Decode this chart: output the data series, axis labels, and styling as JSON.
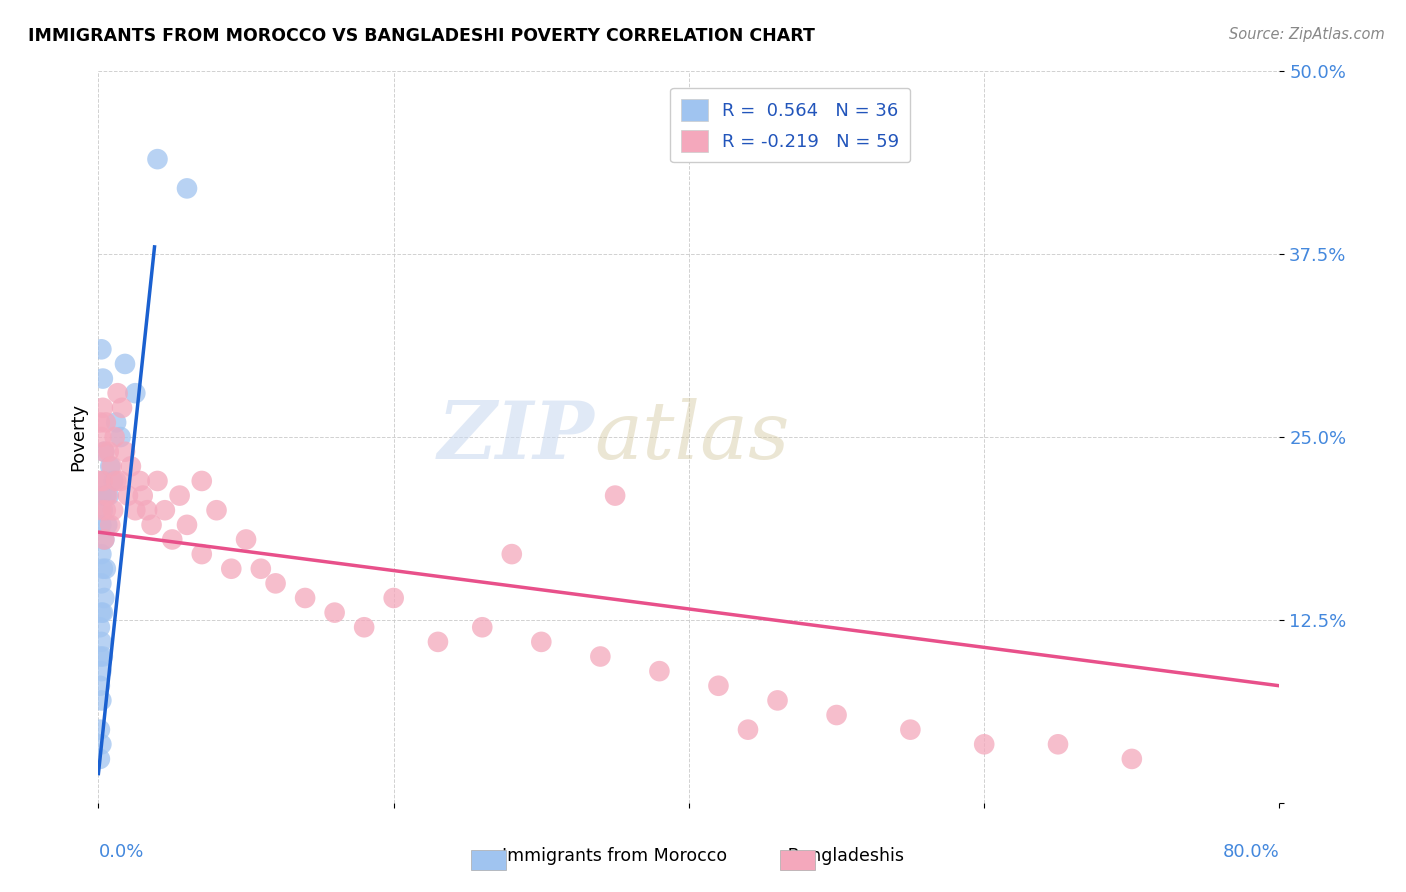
{
  "title": "IMMIGRANTS FROM MOROCCO VS BANGLADESHI POVERTY CORRELATION CHART",
  "source": "Source: ZipAtlas.com",
  "ylabel": "Poverty",
  "xlim": [
    0.0,
    0.8
  ],
  "ylim": [
    0.0,
    0.5
  ],
  "yticks": [
    0.0,
    0.125,
    0.25,
    0.375,
    0.5
  ],
  "ytick_labels": [
    "",
    "12.5%",
    "25.0%",
    "37.5%",
    "50.0%"
  ],
  "legend_r1": "R =  0.564   N = 36",
  "legend_r2": "R = -0.219   N = 59",
  "color_morocco": "#a0c4f0",
  "color_bangladesh": "#f4a8bc",
  "color_line_morocco": "#1a60d0",
  "color_line_bangladesh": "#e8508a",
  "color_trendline_dashed": "#90b8e0",
  "watermark_zip": "ZIP",
  "watermark_atlas": "atlas",
  "morocco_x": [
    0.001,
    0.001,
    0.001,
    0.001,
    0.001,
    0.002,
    0.002,
    0.002,
    0.002,
    0.002,
    0.002,
    0.002,
    0.002,
    0.002,
    0.002,
    0.003,
    0.003,
    0.003,
    0.003,
    0.003,
    0.003,
    0.004,
    0.004,
    0.004,
    0.005,
    0.005,
    0.006,
    0.007,
    0.008,
    0.01,
    0.012,
    0.015,
    0.018,
    0.025,
    0.04,
    0.06
  ],
  "morocco_y": [
    0.03,
    0.05,
    0.08,
    0.1,
    0.12,
    0.04,
    0.07,
    0.09,
    0.11,
    0.13,
    0.15,
    0.17,
    0.19,
    0.21,
    0.31,
    0.1,
    0.13,
    0.16,
    0.2,
    0.22,
    0.29,
    0.14,
    0.18,
    0.24,
    0.16,
    0.21,
    0.19,
    0.21,
    0.23,
    0.22,
    0.26,
    0.25,
    0.3,
    0.28,
    0.44,
    0.42
  ],
  "bangladesh_x": [
    0.001,
    0.001,
    0.002,
    0.002,
    0.003,
    0.003,
    0.004,
    0.004,
    0.005,
    0.005,
    0.006,
    0.007,
    0.008,
    0.009,
    0.01,
    0.011,
    0.012,
    0.013,
    0.015,
    0.016,
    0.018,
    0.02,
    0.022,
    0.025,
    0.028,
    0.03,
    0.033,
    0.036,
    0.04,
    0.045,
    0.05,
    0.055,
    0.06,
    0.07,
    0.08,
    0.09,
    0.1,
    0.11,
    0.12,
    0.14,
    0.16,
    0.18,
    0.2,
    0.23,
    0.26,
    0.3,
    0.34,
    0.38,
    0.42,
    0.46,
    0.5,
    0.55,
    0.6,
    0.65,
    0.7,
    0.35,
    0.28,
    0.07,
    0.44
  ],
  "bangladesh_y": [
    0.22,
    0.26,
    0.2,
    0.25,
    0.22,
    0.27,
    0.18,
    0.24,
    0.2,
    0.26,
    0.21,
    0.24,
    0.19,
    0.23,
    0.2,
    0.25,
    0.22,
    0.28,
    0.22,
    0.27,
    0.24,
    0.21,
    0.23,
    0.2,
    0.22,
    0.21,
    0.2,
    0.19,
    0.22,
    0.2,
    0.18,
    0.21,
    0.19,
    0.17,
    0.2,
    0.16,
    0.18,
    0.16,
    0.15,
    0.14,
    0.13,
    0.12,
    0.14,
    0.11,
    0.12,
    0.11,
    0.1,
    0.09,
    0.08,
    0.07,
    0.06,
    0.05,
    0.04,
    0.04,
    0.03,
    0.21,
    0.17,
    0.22,
    0.05
  ],
  "morocco_trend": [
    0.0,
    0.06,
    0.0,
    0.5
  ],
  "bangladesh_trend_x": [
    0.0,
    0.8
  ],
  "bangladesh_trend_y": [
    0.185,
    0.08
  ],
  "morocco_trend_x": [
    0.0,
    0.038
  ],
  "morocco_trend_y": [
    0.02,
    0.38
  ]
}
